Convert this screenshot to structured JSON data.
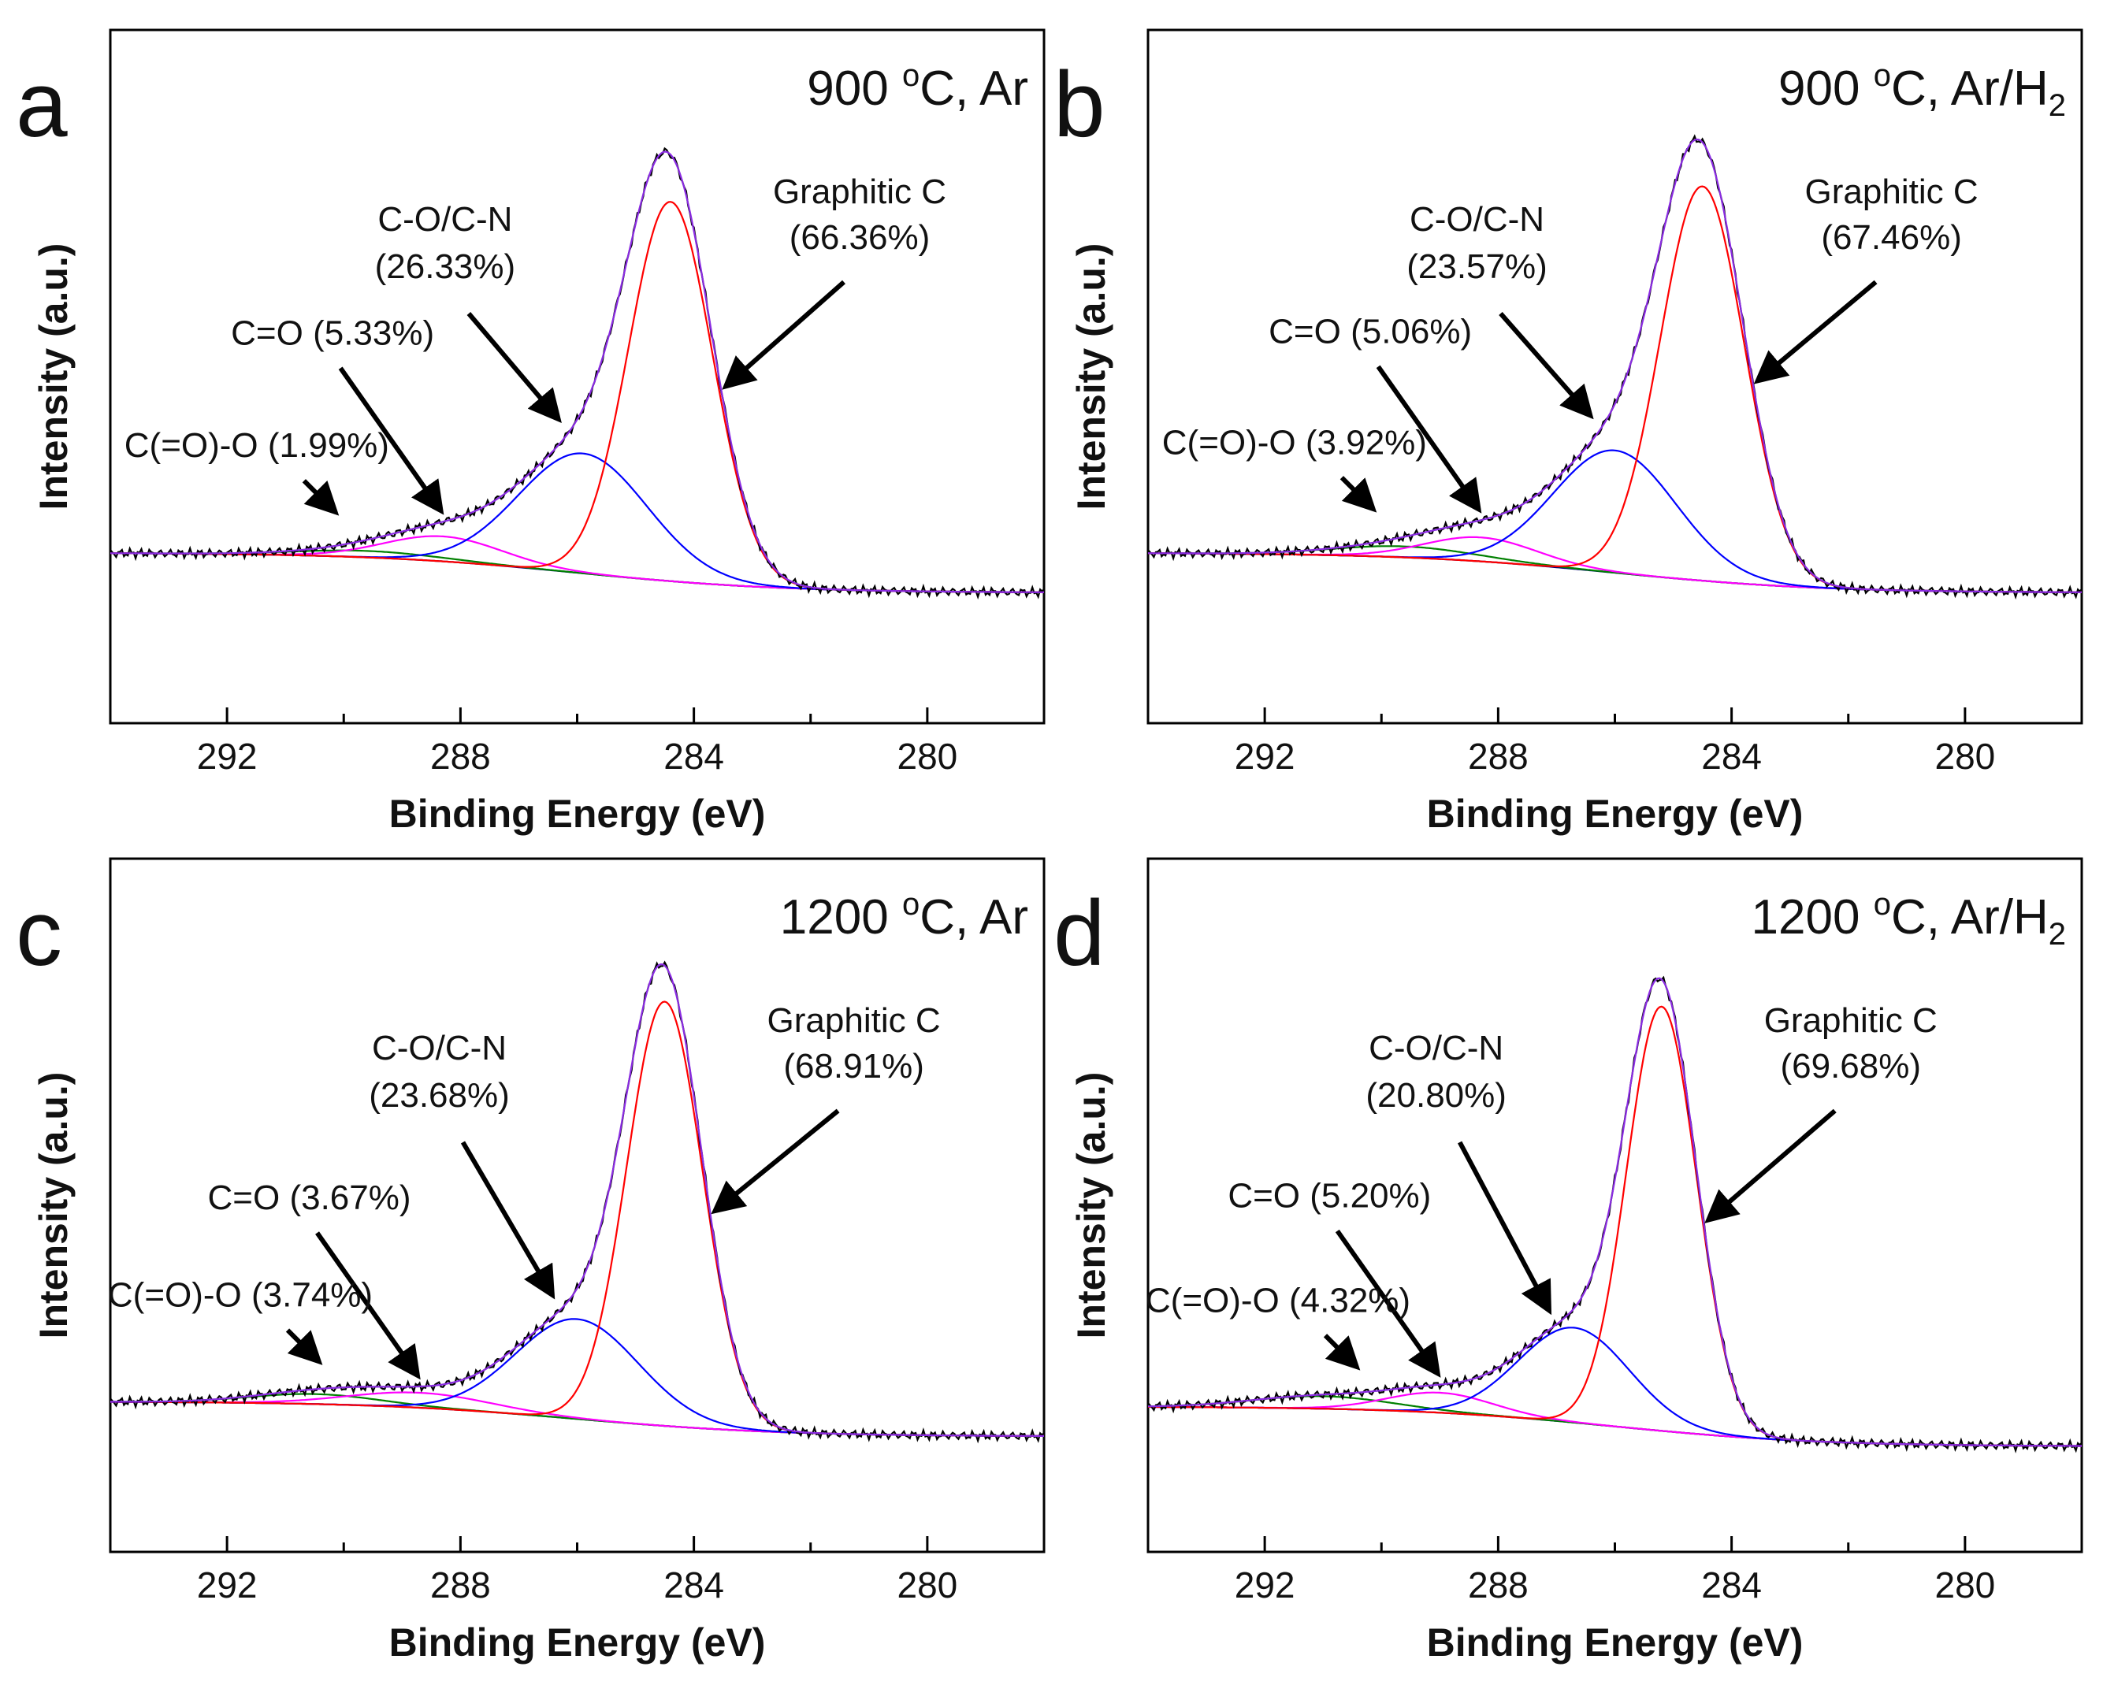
{
  "figure": {
    "x_axis_title": "Binding Energy (eV)",
    "y_axis_title": "Intensity (a.u.)",
    "superscript_o": "o"
  },
  "colors": {
    "raw": "#000000",
    "envelope": "#8a2be2",
    "graphitic": "#ff0000",
    "co_cn": "#0000ff",
    "c_double_o": "#ff00ff",
    "coo": "#008000",
    "background": "#00007a"
  },
  "chart_data": [
    {
      "id": "a",
      "type": "line",
      "panel_label": "a",
      "condition": {
        "temp": "900",
        "unit": "C, Ar",
        "sub": ""
      },
      "xlabel": "Binding Energy (eV)",
      "ylabel": "Intensity (a.u.)",
      "xlim": [
        294.0,
        278.0
      ],
      "xticks": [
        292,
        288,
        284,
        280
      ],
      "xtick_labels": [
        "292",
        "288",
        "284",
        "280"
      ],
      "background": {
        "left": 0.14,
        "right": 0.06
      },
      "peaks": [
        {
          "name": "Graphitic C",
          "percent": "(66.36%)",
          "center": 284.4,
          "sigma": 0.72,
          "height": 0.76
        },
        {
          "name": "C-O/C-N",
          "percent": "(26.33%)",
          "center": 285.9,
          "sigma": 1.1,
          "height": 0.24
        },
        {
          "name": "C=O",
          "percent": "(5.33%)",
          "center": 288.3,
          "sigma": 1.0,
          "height": 0.05
        },
        {
          "name": "C(=O)-O",
          "percent": "(1.99%)",
          "center": 289.6,
          "sigma": 1.2,
          "height": 0.013
        }
      ],
      "labels": {
        "graphitic": {
          "line1": "Graphitic C",
          "line2": "(66.36%)"
        },
        "co_cn": {
          "line1": "C-O/C-N",
          "line2": "(26.33%)"
        },
        "c_double_o": "C=O (5.33%)",
        "coo": "C(=O)-O (1.99%)"
      }
    },
    {
      "id": "b",
      "type": "line",
      "panel_label": "b",
      "condition": {
        "temp": "900",
        "unit": "C, Ar/H",
        "sub": "2"
      },
      "xlabel": "Binding Energy (eV)",
      "ylabel": "Intensity (a.u.)",
      "xlim": [
        294.0,
        278.0
      ],
      "xticks": [
        292,
        288,
        284,
        280
      ],
      "xtick_labels": [
        "292",
        "288",
        "284",
        "280"
      ],
      "background": {
        "left": 0.14,
        "right": 0.06
      },
      "peaks": [
        {
          "name": "Graphitic C",
          "percent": "(67.46%)",
          "center": 284.5,
          "sigma": 0.72,
          "height": 0.79
        },
        {
          "name": "C-O/C-N",
          "percent": "(23.57%)",
          "center": 286.0,
          "sigma": 1.05,
          "height": 0.245
        },
        {
          "name": "C=O",
          "percent": "(5.06%)",
          "center": 288.3,
          "sigma": 0.95,
          "height": 0.048
        },
        {
          "name": "C(=O)-O",
          "percent": "(3.92%)",
          "center": 289.6,
          "sigma": 1.2,
          "height": 0.022
        }
      ],
      "labels": {
        "graphitic": {
          "line1": "Graphitic C",
          "line2": "(67.46%)"
        },
        "co_cn": {
          "line1": "C-O/C-N",
          "line2": "(23.57%)"
        },
        "c_double_o": "C=O (5.06%)",
        "coo": "C(=O)-O (3.92%)"
      }
    },
    {
      "id": "c",
      "type": "line",
      "panel_label": "c",
      "condition": {
        "temp": "1200",
        "unit": "C, Ar",
        "sub": ""
      },
      "xlabel": "Binding Energy (eV)",
      "ylabel": "Intensity (a.u.)",
      "xlim": [
        294.0,
        278.0
      ],
      "xticks": [
        292,
        288,
        284,
        280
      ],
      "xtick_labels": [
        "292",
        "288",
        "284",
        "280"
      ],
      "background": {
        "left": 0.1,
        "right": 0.03
      },
      "peaks": [
        {
          "name": "Graphitic C",
          "percent": "(68.91%)",
          "center": 284.5,
          "sigma": 0.65,
          "height": 0.85
        },
        {
          "name": "C-O/C-N",
          "percent": "(23.68%)",
          "center": 286.0,
          "sigma": 1.05,
          "height": 0.2
        },
        {
          "name": "C=O",
          "percent": "(3.67%)",
          "center": 288.7,
          "sigma": 1.2,
          "height": 0.03
        },
        {
          "name": "C(=O)-O",
          "percent": "(3.74%)",
          "center": 290.5,
          "sigma": 1.1,
          "height": 0.02
        }
      ],
      "labels": {
        "graphitic": {
          "line1": "Graphitic C",
          "line2": "(68.91%)"
        },
        "co_cn": {
          "line1": "C-O/C-N",
          "line2": "(23.68%)"
        },
        "c_double_o": "C=O (3.67%)",
        "coo": "C(=O)-O (3.74%)"
      }
    },
    {
      "id": "d",
      "type": "line",
      "panel_label": "d",
      "condition": {
        "temp": "1200",
        "unit": "C, Ar/H",
        "sub": "2"
      },
      "xlabel": "Binding Energy (eV)",
      "ylabel": "Intensity (a.u.)",
      "xlim": [
        294.0,
        278.0
      ],
      "xticks": [
        292,
        288,
        284,
        280
      ],
      "xtick_labels": [
        "292",
        "288",
        "284",
        "280"
      ],
      "background": {
        "left": 0.09,
        "right": 0.01
      },
      "peaks": [
        {
          "name": "Graphitic C",
          "percent": "(69.68%)",
          "center": 285.2,
          "sigma": 0.6,
          "height": 0.85
        },
        {
          "name": "C-O/C-N",
          "percent": "(20.80%)",
          "center": 286.7,
          "sigma": 0.95,
          "height": 0.19
        },
        {
          "name": "C=O",
          "percent": "(5.20%)",
          "center": 289.0,
          "sigma": 0.9,
          "height": 0.04
        },
        {
          "name": "C(=O)-O",
          "percent": "(4.32%)",
          "center": 291.0,
          "sigma": 1.2,
          "height": 0.025
        }
      ],
      "labels": {
        "graphitic": {
          "line1": "Graphitic C",
          "line2": "(69.68%)"
        },
        "co_cn": {
          "line1": "C-O/C-N",
          "line2": "(20.80%)"
        },
        "c_double_o": "C=O (5.20%)",
        "coo": "C(=O)-O (4.32%)"
      }
    }
  ]
}
